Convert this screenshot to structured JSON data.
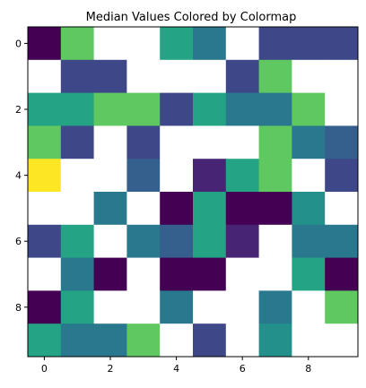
{
  "chart_data": {
    "type": "heatmap",
    "title": "Median Values Colored by Colormap",
    "xlabel": "",
    "ylabel": "",
    "x_ticks": [
      "0",
      "2",
      "4",
      "6",
      "8"
    ],
    "y_ticks": [
      "0",
      "2",
      "4",
      "6",
      "8"
    ],
    "x_tick_values": [
      0,
      2,
      4,
      6,
      8
    ],
    "y_tick_values": [
      0,
      2,
      4,
      6,
      8
    ],
    "rows": 10,
    "cols": 10,
    "colormap": "viridis",
    "colormap_stops": [
      "#440154",
      "#482878",
      "#3e4989",
      "#31688e",
      "#26828e",
      "#1f9e89",
      "#35b779",
      "#6ece58",
      "#b5de2b",
      "#fde725"
    ],
    "vmin": 0,
    "vmax": 1,
    "missing_color": "#ffffff",
    "grid": false,
    "values": [
      [
        0.0,
        0.75,
        null,
        null,
        0.58,
        0.4,
        null,
        0.22,
        0.22,
        0.22
      ],
      [
        null,
        0.22,
        0.22,
        null,
        null,
        null,
        0.22,
        0.75,
        null,
        null
      ],
      [
        0.58,
        0.58,
        0.75,
        0.75,
        0.22,
        0.58,
        0.4,
        0.4,
        0.75,
        null
      ],
      [
        0.75,
        0.22,
        null,
        0.22,
        null,
        null,
        null,
        0.75,
        0.4,
        0.3
      ],
      [
        1.0,
        null,
        null,
        0.3,
        null,
        0.1,
        0.58,
        0.75,
        null,
        0.22
      ],
      [
        null,
        null,
        0.4,
        null,
        0.0,
        0.58,
        0.0,
        0.0,
        0.5,
        null
      ],
      [
        0.22,
        0.58,
        null,
        0.4,
        0.3,
        0.58,
        0.1,
        null,
        0.4,
        0.4
      ],
      [
        null,
        0.4,
        0.0,
        null,
        0.0,
        0.0,
        null,
        null,
        0.58,
        0.0
      ],
      [
        0.0,
        0.58,
        null,
        null,
        0.4,
        null,
        null,
        0.4,
        null,
        0.75
      ],
      [
        0.58,
        0.4,
        0.4,
        0.75,
        null,
        0.22,
        null,
        0.5,
        null,
        null
      ]
    ]
  }
}
